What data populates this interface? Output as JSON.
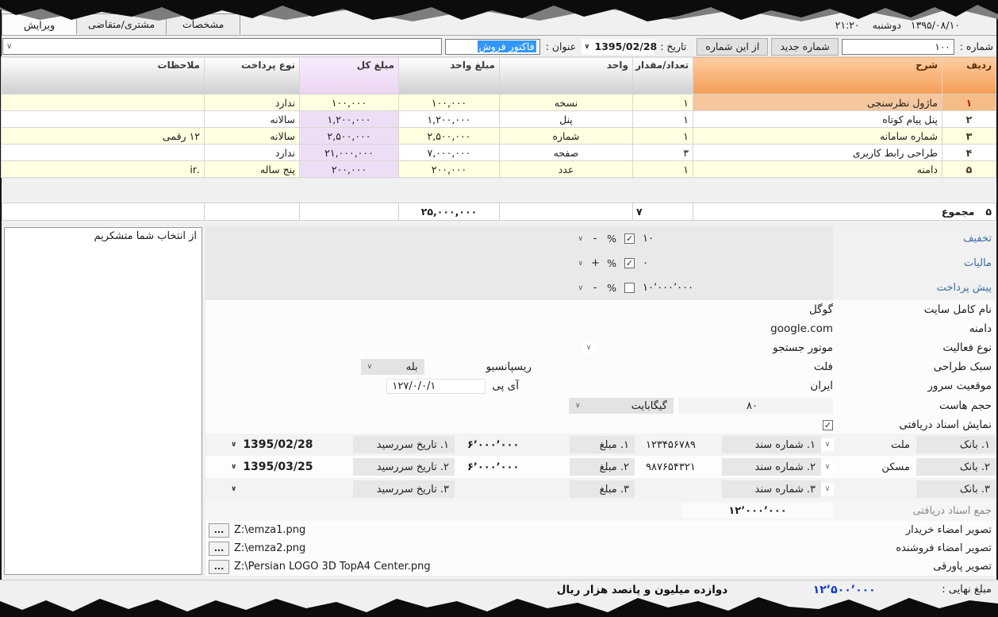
{
  "titlebar": {
    "datetime": "۱۳۹۵/۰۸/۱۰   دوشنبه    ۲۱:۲۰"
  },
  "tabs": [
    {
      "label": "مشخصات",
      "active": false
    },
    {
      "label": "مشتری/متقاضی",
      "active": false
    },
    {
      "label": "ویرایش",
      "active": true
    }
  ],
  "toolbar": {
    "number_label": "شماره :",
    "number_value": "۱۰۰",
    "new_number_button": "شماره جدید",
    "from_this_number_button": "از این شماره",
    "date_label": "تاریخ :",
    "date_value": "1395/02/28",
    "title_label": "عنوان :",
    "title_value": "فاکتور فروش",
    "description_combo_value": ""
  },
  "items_table": {
    "headers": [
      "ردیف",
      "شرح",
      "تعداد/مقدار",
      "واحد",
      "مبلغ واحد",
      "مبلغ کل",
      "نوع پرداخت",
      "ملاحظات"
    ],
    "rows": [
      [
        "۱",
        "ماژول نظرسنجی",
        "۱",
        "نسخه",
        "۱۰۰,۰۰۰",
        "۱۰۰,۰۰۰",
        "ندارد",
        ""
      ],
      [
        "۲",
        "پنل پیام کوتاه",
        "۱",
        "پنل",
        "۱,۲۰۰,۰۰۰",
        "۱,۲۰۰,۰۰۰",
        "سالانه",
        ""
      ],
      [
        "۳",
        "شماره سامانه",
        "۱",
        "شماره",
        "۲,۵۰۰,۰۰۰",
        "۲,۵۰۰,۰۰۰",
        "سالانه",
        "۱۲ رقمی"
      ],
      [
        "۴",
        "طراحی رابط کاربری",
        "۳",
        "صفحه",
        "۷,۰۰۰,۰۰۰",
        "۲۱,۰۰۰,۰۰۰",
        "ندارد",
        ""
      ],
      [
        "۵",
        "دامنه",
        "۱",
        "عدد",
        "۲۰۰,۰۰۰",
        "۲۰۰,۰۰۰",
        "پنج ساله",
        ".ir"
      ]
    ],
    "summary": {
      "count": "۵",
      "label": "مجموع",
      "qty_total": "۷",
      "amount_total": "۲۵,۰۰۰,۰۰۰"
    }
  },
  "notes_box": {
    "text": "از انتخاب شما متشکریم"
  },
  "adjustments": [
    {
      "label": "تخفیف",
      "value": "۱۰",
      "percent": "%",
      "sign": "-",
      "checked": true
    },
    {
      "label": "مالیات",
      "value": "۰",
      "percent": "%",
      "sign": "+",
      "checked": true
    },
    {
      "label": "پیش پرداخت",
      "value": "۱۰٬۰۰۰٬۰۰۰",
      "percent": "%",
      "sign": "-",
      "checked": false
    }
  ],
  "site_info": {
    "full_name_label": "نام کامل سایت",
    "full_name_value": "گوگل",
    "domain_label": "دامنه",
    "domain_value": "google.com",
    "activity_label": "نوع فعالیت",
    "activity_value": "موتور جستجو",
    "style_label": "سبک طراحی",
    "style_value": "فلت",
    "responsive_label": "ریسپانسیو",
    "responsive_value": "بله",
    "server_label": "موقعیت سرور",
    "server_value": "ایران",
    "ip_label": "آی پی",
    "ip_value": "۱۲۷/۰/۰/۱",
    "host_label": "حجم هاست",
    "host_value": "۸۰",
    "host_unit": "گیگابایت",
    "show_docs_label": "نمایش اسناد دریافتی",
    "show_docs_checked": true
  },
  "bank_documents": {
    "rows": [
      {
        "bank_label": "۱. بانک",
        "bank": "ملت",
        "doc_label": "۱. شماره سند",
        "doc": "۱۲۳۴۵۶۷۸۹",
        "amount_label": "۱. مبلغ",
        "amount": "۶٬۰۰۰٬۰۰۰",
        "due_label": "۱. تاریخ سررسید",
        "due": "1395/02/28"
      },
      {
        "bank_label": "۲. بانک",
        "bank": "مسکن",
        "doc_label": "۲. شماره سند",
        "doc": "۹۸۷۶۵۴۳۲۱",
        "amount_label": "۲. مبلغ",
        "amount": "۶٬۰۰۰٬۰۰۰",
        "due_label": "۲. تاریخ سررسید",
        "due": "1395/03/25"
      },
      {
        "bank_label": "۳. بانک",
        "bank": "",
        "doc_label": "۳. شماره سند",
        "doc": "",
        "amount_label": "۳. مبلغ",
        "amount": "",
        "due_label": "۳. تاریخ سررسید",
        "due": ""
      }
    ],
    "total_label": "جمع اسناد دریافتی",
    "total_value": "۱۲٬۰۰۰٬۰۰۰"
  },
  "images": {
    "browse_label": "...",
    "rows": [
      {
        "label": "تصویر امضاء خریدار",
        "path": "Z:\\emza1.png"
      },
      {
        "label": "تصویر امضاء فروشنده",
        "path": "Z:\\emza2.png"
      },
      {
        "label": "تصویر پاورقی",
        "path": "Z:\\Persian LOGO 3D TopA4 Center.png"
      }
    ]
  },
  "footer": {
    "final_label": "مبلغ نهایی :",
    "final_value": "۱۲٬۵۰۰٬۰۰۰",
    "final_words": "دوازده میلیون و پانصد هزار  ریال"
  },
  "colors": {
    "selection_blue": "#3297fd",
    "header_orange": "#f49d56",
    "row_stripe_yellow": "#ffffe1",
    "total_column_lavender": "#eedef5",
    "adjustment_label_blue": "#3a6da2",
    "final_amount_blue": "#1539d0"
  }
}
